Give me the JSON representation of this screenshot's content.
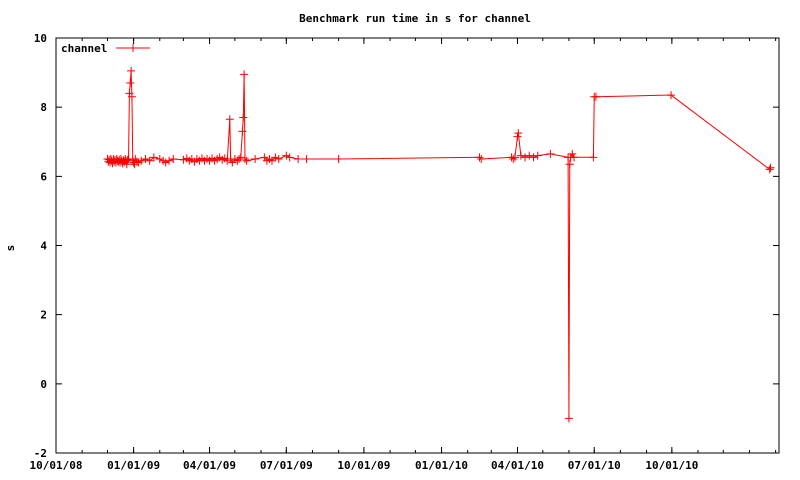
{
  "chart_data": {
    "type": "line",
    "title": "Benchmark run time in s for channel",
    "xlabel": "",
    "ylabel": "s",
    "x_type": "date",
    "xlim": [
      "2008-10-01",
      "2011-02-05"
    ],
    "ylim": [
      -2,
      10
    ],
    "x_ticks": [
      {
        "date": "2008-10-01",
        "label": "10/01/08"
      },
      {
        "date": "2009-01-01",
        "label": "01/01/09"
      },
      {
        "date": "2009-04-01",
        "label": "04/01/09"
      },
      {
        "date": "2009-07-01",
        "label": "07/01/09"
      },
      {
        "date": "2009-10-01",
        "label": "10/01/09"
      },
      {
        "date": "2010-01-01",
        "label": "01/01/10"
      },
      {
        "date": "2010-04-01",
        "label": "04/01/10"
      },
      {
        "date": "2010-07-01",
        "label": "07/01/10"
      },
      {
        "date": "2010-10-01",
        "label": "10/01/10"
      }
    ],
    "y_ticks": [
      -2,
      0,
      2,
      4,
      6,
      8,
      10
    ],
    "grid": false,
    "legend_position": "top-left",
    "series": [
      {
        "name": "channel",
        "color": "#ff0000",
        "marker": "plus",
        "points": [
          [
            "2008-12-01",
            6.5
          ],
          [
            "2008-12-02",
            6.42
          ],
          [
            "2008-12-03",
            6.48
          ],
          [
            "2008-12-04",
            6.4
          ],
          [
            "2008-12-05",
            6.5
          ],
          [
            "2008-12-06",
            6.45
          ],
          [
            "2008-12-07",
            6.38
          ],
          [
            "2008-12-08",
            6.5
          ],
          [
            "2008-12-09",
            6.43
          ],
          [
            "2008-12-10",
            6.47
          ],
          [
            "2008-12-11",
            6.4
          ],
          [
            "2008-12-12",
            6.5
          ],
          [
            "2008-12-13",
            6.45
          ],
          [
            "2008-12-14",
            6.42
          ],
          [
            "2008-12-15",
            6.48
          ],
          [
            "2008-12-16",
            6.4
          ],
          [
            "2008-12-17",
            6.5
          ],
          [
            "2008-12-18",
            6.44
          ],
          [
            "2008-12-19",
            6.38
          ],
          [
            "2008-12-20",
            6.46
          ],
          [
            "2008-12-21",
            6.42
          ],
          [
            "2008-12-22",
            6.5
          ],
          [
            "2008-12-23",
            6.45
          ],
          [
            "2008-12-24",
            6.35
          ],
          [
            "2008-12-25",
            6.48
          ],
          [
            "2008-12-26",
            6.5
          ],
          [
            "2008-12-27",
            8.4
          ],
          [
            "2008-12-28",
            8.7
          ],
          [
            "2008-12-29",
            9.05
          ],
          [
            "2008-12-30",
            8.3
          ],
          [
            "2008-12-31",
            6.45
          ],
          [
            "2009-01-01",
            6.4
          ],
          [
            "2009-01-02",
            6.35
          ],
          [
            "2009-01-03",
            6.5
          ],
          [
            "2009-01-05",
            6.42
          ],
          [
            "2009-01-07",
            6.4
          ],
          [
            "2009-01-10",
            6.45
          ],
          [
            "2009-01-15",
            6.5
          ],
          [
            "2009-01-20",
            6.45
          ],
          [
            "2009-01-25",
            6.55
          ],
          [
            "2009-02-01",
            6.5
          ],
          [
            "2009-02-05",
            6.45
          ],
          [
            "2009-02-08",
            6.4
          ],
          [
            "2009-02-12",
            6.45
          ],
          [
            "2009-02-17",
            6.5
          ],
          [
            "2009-03-01",
            6.48
          ],
          [
            "2009-03-05",
            6.52
          ],
          [
            "2009-03-08",
            6.45
          ],
          [
            "2009-03-11",
            6.5
          ],
          [
            "2009-03-14",
            6.42
          ],
          [
            "2009-03-17",
            6.5
          ],
          [
            "2009-03-20",
            6.45
          ],
          [
            "2009-03-23",
            6.52
          ],
          [
            "2009-03-26",
            6.45
          ],
          [
            "2009-03-29",
            6.5
          ],
          [
            "2009-04-01",
            6.45
          ],
          [
            "2009-04-04",
            6.52
          ],
          [
            "2009-04-07",
            6.45
          ],
          [
            "2009-04-10",
            6.5
          ],
          [
            "2009-04-13",
            6.55
          ],
          [
            "2009-04-16",
            6.48
          ],
          [
            "2009-04-19",
            6.52
          ],
          [
            "2009-04-22",
            6.45
          ],
          [
            "2009-04-25",
            7.65
          ],
          [
            "2009-04-26",
            6.5
          ],
          [
            "2009-04-28",
            6.4
          ],
          [
            "2009-05-01",
            6.5
          ],
          [
            "2009-05-04",
            6.45
          ],
          [
            "2009-05-06",
            6.5
          ],
          [
            "2009-05-08",
            6.55
          ],
          [
            "2009-05-10",
            7.3
          ],
          [
            "2009-05-11",
            7.7
          ],
          [
            "2009-05-12",
            8.95
          ],
          [
            "2009-05-13",
            6.5
          ],
          [
            "2009-05-15",
            6.45
          ],
          [
            "2009-05-25",
            6.5
          ],
          [
            "2009-06-05",
            6.55
          ],
          [
            "2009-06-08",
            6.45
          ],
          [
            "2009-06-11",
            6.5
          ],
          [
            "2009-06-14",
            6.45
          ],
          [
            "2009-06-18",
            6.55
          ],
          [
            "2009-06-22",
            6.5
          ],
          [
            "2009-07-01",
            6.6
          ],
          [
            "2009-07-05",
            6.55
          ],
          [
            "2009-07-15",
            6.5
          ],
          [
            "2009-07-25",
            6.5
          ],
          [
            "2009-09-01",
            6.5
          ],
          [
            "2010-02-15",
            6.55
          ],
          [
            "2010-02-17",
            6.5
          ],
          [
            "2010-03-25",
            6.55
          ],
          [
            "2010-03-27",
            6.5
          ],
          [
            "2010-03-29",
            6.55
          ],
          [
            "2010-04-01",
            7.15
          ],
          [
            "2010-04-02",
            7.25
          ],
          [
            "2010-04-05",
            6.6
          ],
          [
            "2010-04-10",
            6.55
          ],
          [
            "2010-04-15",
            6.6
          ],
          [
            "2010-04-20",
            6.55
          ],
          [
            "2010-04-25",
            6.6
          ],
          [
            "2010-05-10",
            6.65
          ],
          [
            "2010-05-31",
            6.55
          ],
          [
            "2010-06-01",
            -1.0
          ],
          [
            "2010-06-02",
            6.35
          ],
          [
            "2010-06-03",
            6.55
          ],
          [
            "2010-06-05",
            6.65
          ],
          [
            "2010-06-07",
            6.55
          ],
          [
            "2010-06-30",
            6.55
          ],
          [
            "2010-07-01",
            8.3
          ],
          [
            "2010-07-03",
            8.3
          ],
          [
            "2010-09-30",
            8.35
          ],
          [
            "2011-01-25",
            6.2
          ],
          [
            "2011-01-26",
            6.25
          ]
        ]
      }
    ]
  }
}
